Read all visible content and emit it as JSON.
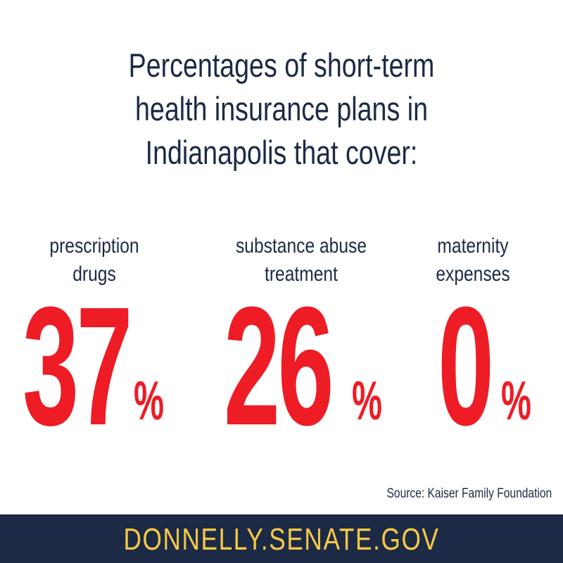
{
  "title": {
    "lines": [
      "Percentages of short-term",
      "health insurance plans in",
      "Indianapolis that cover:"
    ]
  },
  "stats": [
    {
      "label_lines": [
        "prescription",
        "drugs"
      ],
      "value": "37",
      "unit": "%",
      "percent": 37
    },
    {
      "label_lines": [
        "substance abuse",
        "treatment"
      ],
      "value": "26",
      "unit": "%",
      "percent": 26
    },
    {
      "label_lines": [
        "maternity",
        "expenses"
      ],
      "value": "0",
      "unit": "%",
      "percent": 0
    }
  ],
  "source": "Source: Kaiser Family Foundation",
  "footer": {
    "website": "DONNELLY.SENATE.GOV"
  },
  "colors": {
    "navy": "#1b2a45",
    "red": "#ee1c25",
    "gold": "#f7c947",
    "background": "#ffffff"
  }
}
